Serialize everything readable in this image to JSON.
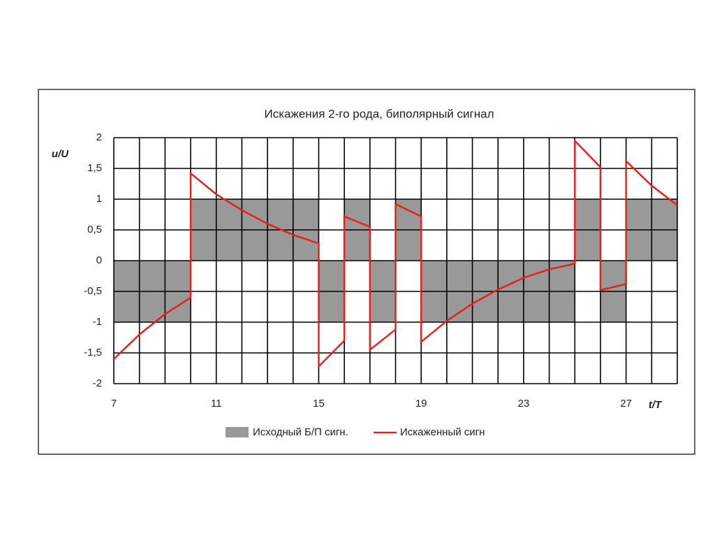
{
  "chart_data": {
    "type": "line",
    "title": "Искажения 2-го рода, биполярный сигнал",
    "y_label": "u/U",
    "x_label": "t/T",
    "xlim": [
      7,
      29
    ],
    "ylim": [
      -2,
      2
    ],
    "xticks": [
      7,
      11,
      15,
      19,
      23,
      27
    ],
    "yticks": [
      -2,
      {
        "value": -1.5,
        "label": "-1,5"
      },
      -1,
      {
        "value": -0.5,
        "label": "-0,5"
      },
      0,
      {
        "value": 0.5,
        "label": "0,5"
      },
      1,
      {
        "value": 1.5,
        "label": "1,5"
      },
      2
    ],
    "grid": true,
    "series": [
      {
        "name": "Исходный Б/П сигн.",
        "color": "#999999",
        "bins": [
          7,
          8,
          9,
          10,
          11,
          12,
          13,
          14,
          15,
          16,
          17,
          18,
          19,
          20,
          21,
          22,
          23,
          24,
          25,
          26,
          27,
          28,
          29
        ],
        "values": [
          -1,
          -1,
          -1,
          1,
          1,
          1,
          1,
          1,
          -1,
          1,
          -1,
          1,
          -1,
          -1,
          -1,
          -1,
          -1,
          -1,
          1,
          -1,
          1,
          1
        ]
      },
      {
        "name": "Искаженный сигн",
        "color": "#e8201c",
        "x": [
          7,
          8,
          9,
          10,
          10,
          11,
          12,
          13,
          14,
          15,
          15,
          16,
          16,
          17,
          17,
          18,
          18,
          19,
          19,
          20,
          21,
          22,
          23,
          24,
          25,
          25,
          26,
          26,
          27,
          27,
          28,
          29
        ],
        "values": [
          -1.6,
          -1.2,
          -0.87,
          -0.6,
          1.42,
          1.08,
          0.82,
          0.6,
          0.42,
          0.28,
          -1.72,
          -1.3,
          0.72,
          0.55,
          -1.45,
          -1.12,
          0.92,
          0.72,
          -1.32,
          -0.98,
          -0.7,
          -0.47,
          -0.28,
          -0.14,
          -0.05,
          1.95,
          1.52,
          -0.48,
          -0.38,
          1.62,
          1.22,
          0.9
        ]
      }
    ]
  }
}
